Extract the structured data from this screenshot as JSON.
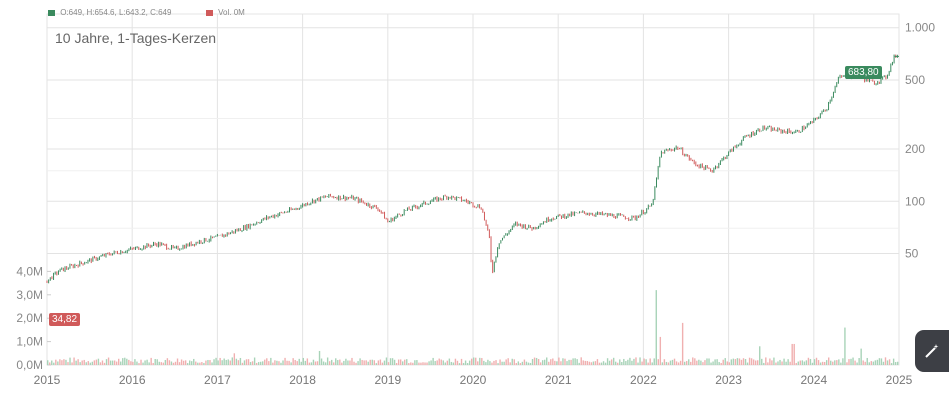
{
  "legend": {
    "ohlc_text": "O:649, H:654.6, L:643.2, C:649",
    "volume_text": "Vol. 0M",
    "ohlc_color": "#3a8a5e",
    "volume_color": "#d05a5a"
  },
  "chart_data": {
    "type": "candlestick",
    "title": "10 Jahre, 1-Tages-Kerzen",
    "x_tick_labels": [
      "2015",
      "2016",
      "2017",
      "2018",
      "2019",
      "2020",
      "2021",
      "2022",
      "2023",
      "2024",
      "2025"
    ],
    "price_axis": {
      "scale": "log",
      "range": [
        27,
        1200
      ],
      "tick_labels": [
        "1.000",
        "500",
        "200",
        "100",
        "50"
      ],
      "tick_values": [
        1000,
        500,
        200,
        100,
        50
      ],
      "position": "right"
    },
    "volume_axis": {
      "range": [
        0,
        5000000
      ],
      "tick_labels": [
        "4,0M",
        "3,0M",
        "2,0M",
        "1,0M",
        "0,0M"
      ],
      "tick_values": [
        4000000,
        3000000,
        2000000,
        1000000,
        0
      ],
      "position": "left"
    },
    "price_path": [
      {
        "x": 2015.0,
        "y": 34.82
      },
      {
        "x": 2015.15,
        "y": 40
      },
      {
        "x": 2015.4,
        "y": 44
      },
      {
        "x": 2015.75,
        "y": 50
      },
      {
        "x": 2016.0,
        "y": 53
      },
      {
        "x": 2016.3,
        "y": 57
      },
      {
        "x": 2016.5,
        "y": 53
      },
      {
        "x": 2016.8,
        "y": 59
      },
      {
        "x": 2017.0,
        "y": 62
      },
      {
        "x": 2017.3,
        "y": 70
      },
      {
        "x": 2017.6,
        "y": 81
      },
      {
        "x": 2017.9,
        "y": 90
      },
      {
        "x": 2018.1,
        "y": 100
      },
      {
        "x": 2018.3,
        "y": 107
      },
      {
        "x": 2018.6,
        "y": 104
      },
      {
        "x": 2018.9,
        "y": 90
      },
      {
        "x": 2019.0,
        "y": 76
      },
      {
        "x": 2019.2,
        "y": 88
      },
      {
        "x": 2019.5,
        "y": 100
      },
      {
        "x": 2019.7,
        "y": 107
      },
      {
        "x": 2019.9,
        "y": 101
      },
      {
        "x": 2020.1,
        "y": 92
      },
      {
        "x": 2020.2,
        "y": 59
      },
      {
        "x": 2020.22,
        "y": 38
      },
      {
        "x": 2020.3,
        "y": 58
      },
      {
        "x": 2020.5,
        "y": 74
      },
      {
        "x": 2020.7,
        "y": 70
      },
      {
        "x": 2020.9,
        "y": 80
      },
      {
        "x": 2021.1,
        "y": 83
      },
      {
        "x": 2021.3,
        "y": 86
      },
      {
        "x": 2021.6,
        "y": 83
      },
      {
        "x": 2021.9,
        "y": 80
      },
      {
        "x": 2022.1,
        "y": 95
      },
      {
        "x": 2022.15,
        "y": 130
      },
      {
        "x": 2022.2,
        "y": 190
      },
      {
        "x": 2022.4,
        "y": 205
      },
      {
        "x": 2022.6,
        "y": 165
      },
      {
        "x": 2022.8,
        "y": 150
      },
      {
        "x": 2023.0,
        "y": 190
      },
      {
        "x": 2023.2,
        "y": 235
      },
      {
        "x": 2023.4,
        "y": 265
      },
      {
        "x": 2023.6,
        "y": 255
      },
      {
        "x": 2023.8,
        "y": 250
      },
      {
        "x": 2024.0,
        "y": 290
      },
      {
        "x": 2024.15,
        "y": 345
      },
      {
        "x": 2024.3,
        "y": 520
      },
      {
        "x": 2024.5,
        "y": 530
      },
      {
        "x": 2024.7,
        "y": 480
      },
      {
        "x": 2024.85,
        "y": 520
      },
      {
        "x": 2024.95,
        "y": 700
      },
      {
        "x": 2025.0,
        "y": 649
      }
    ],
    "annotations": {
      "high_label": "683,80",
      "high_value": 683.8,
      "high_color": "#3a8a5e",
      "low_label": "34,82",
      "low_value": 34.82,
      "low_color": "#d05a5a"
    },
    "volume_note": "Volume bars mostly below 0.5M, with spikes around 2022 (up to ~3.2M) and 2024 (~1.6M)",
    "grid": true,
    "up_color": "#3a8a5e",
    "down_color": "#d05a5a"
  }
}
